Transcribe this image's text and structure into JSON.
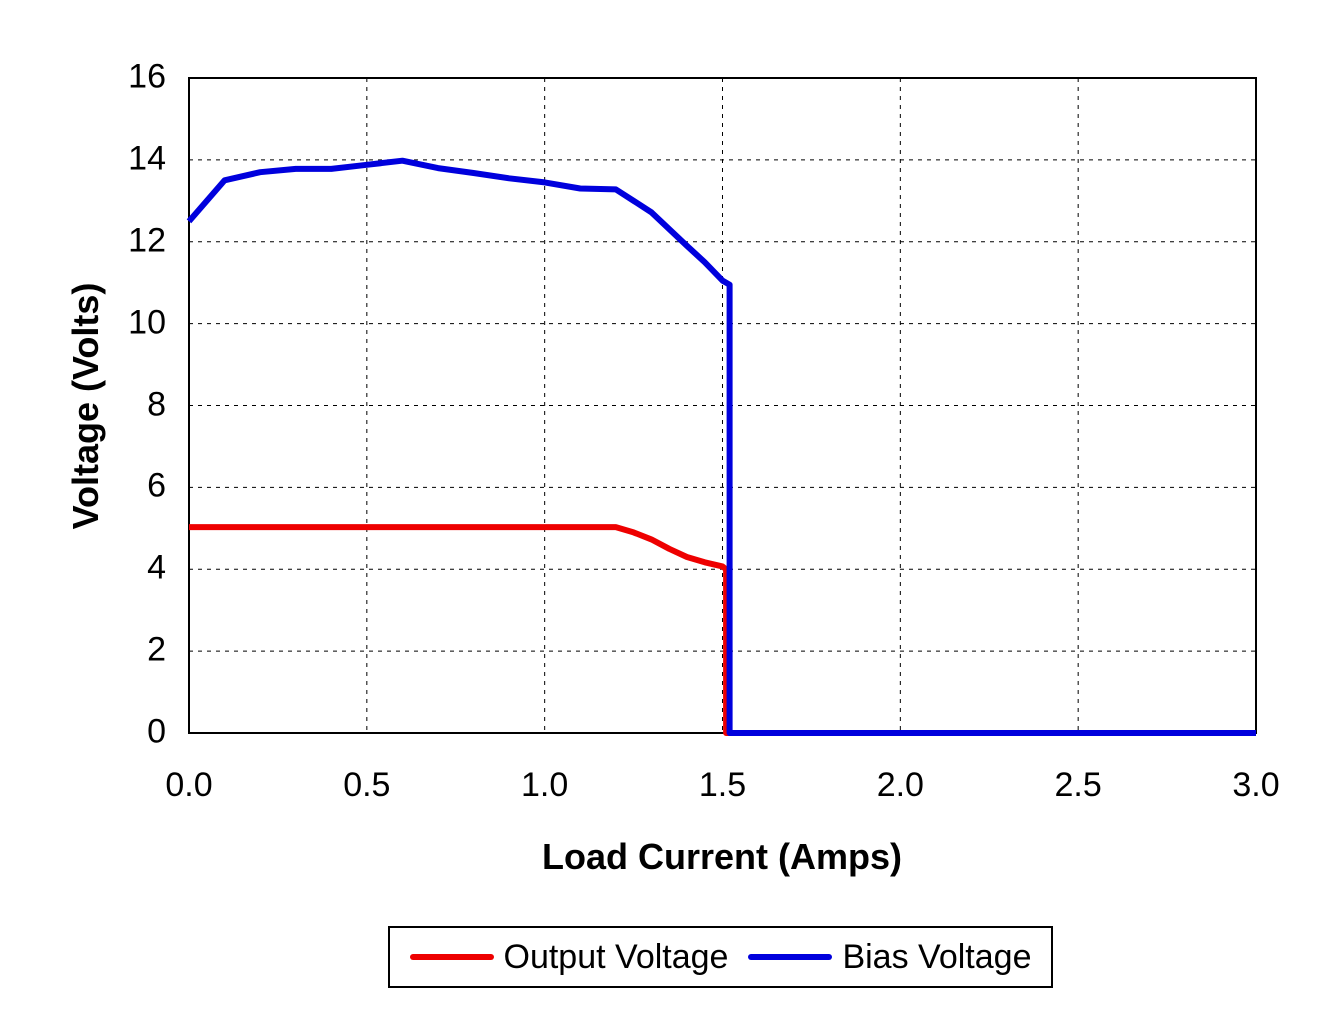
{
  "chart_data": {
    "type": "line",
    "title": "",
    "xlabel": "Load Current (Amps)",
    "ylabel": "Voltage (Volts)",
    "xlim": [
      0,
      3
    ],
    "ylim": [
      0,
      16
    ],
    "x_ticks": [
      0,
      0.5,
      1,
      1.5,
      2,
      2.5,
      3
    ],
    "x_tick_labels": [
      "0.0",
      "0.5",
      "1.0",
      "1.5",
      "2.0",
      "2.5",
      "3.0"
    ],
    "y_ticks": [
      0,
      2,
      4,
      6,
      8,
      10,
      12,
      14,
      16
    ],
    "y_tick_labels": [
      "0",
      "2",
      "4",
      "6",
      "8",
      "10",
      "12",
      "14",
      "16"
    ],
    "grid": "dashed, both axes",
    "legend_position": "bottom center, boxed",
    "series": [
      {
        "name": "Output Voltage",
        "color": "#ee0000",
        "points": [
          [
            0,
            5.03
          ],
          [
            0.2,
            5.03
          ],
          [
            0.4,
            5.03
          ],
          [
            0.6,
            5.03
          ],
          [
            0.8,
            5.03
          ],
          [
            1.0,
            5.03
          ],
          [
            1.2,
            5.03
          ],
          [
            1.25,
            4.9
          ],
          [
            1.3,
            4.73
          ],
          [
            1.35,
            4.5
          ],
          [
            1.4,
            4.3
          ],
          [
            1.45,
            4.17
          ],
          [
            1.5,
            4.07
          ],
          [
            1.51,
            4.0
          ],
          [
            1.51,
            0
          ],
          [
            3.0,
            0
          ]
        ]
      },
      {
        "name": "Bias Voltage",
        "color": "#0000dd",
        "points": [
          [
            0,
            12.5
          ],
          [
            0.1,
            13.5
          ],
          [
            0.2,
            13.7
          ],
          [
            0.3,
            13.78
          ],
          [
            0.4,
            13.78
          ],
          [
            0.5,
            13.88
          ],
          [
            0.6,
            13.98
          ],
          [
            0.7,
            13.8
          ],
          [
            0.8,
            13.68
          ],
          [
            0.9,
            13.55
          ],
          [
            1.0,
            13.45
          ],
          [
            1.1,
            13.3
          ],
          [
            1.2,
            13.28
          ],
          [
            1.25,
            13.0
          ],
          [
            1.3,
            12.72
          ],
          [
            1.4,
            11.9
          ],
          [
            1.45,
            11.5
          ],
          [
            1.5,
            11.05
          ],
          [
            1.52,
            10.95
          ],
          [
            1.52,
            0
          ],
          [
            3.0,
            0
          ]
        ]
      }
    ]
  },
  "legend": {
    "items": [
      {
        "label": "Output Voltage",
        "swatch_color": "#ee0000"
      },
      {
        "label": "Bias Voltage",
        "swatch_color": "#0000dd"
      }
    ]
  }
}
